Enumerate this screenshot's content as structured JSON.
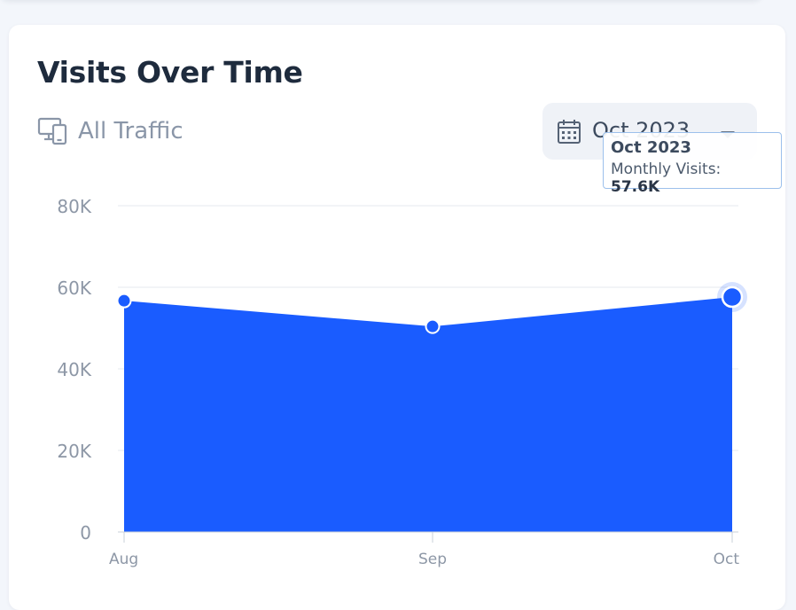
{
  "header": {
    "title": "Visits Over Time",
    "filter_label": "All Traffic",
    "date_selector": "Oct 2023"
  },
  "tooltip": {
    "title": "Oct 2023",
    "metric_label": "Monthly Visits:",
    "metric_value": "57.6K"
  },
  "icons": {
    "filter": "devices-icon",
    "date": "calendar-icon",
    "dropdown": "caret-down-icon"
  },
  "colors": {
    "area_fill": "#1a5cff",
    "point_fill": "#1a5cff",
    "grid": "#e6e9ef",
    "axis_text": "#8d97a6"
  },
  "chart_data": {
    "type": "area",
    "categories": [
      "Aug",
      "Sep",
      "Oct"
    ],
    "series": [
      {
        "values": [
          56700,
          50400,
          57600
        ]
      }
    ],
    "title": "Visits Over Time",
    "xlabel": "",
    "ylabel": "",
    "ylim": [
      0,
      80000
    ],
    "y_ticks": [
      0,
      20000,
      40000,
      60000,
      80000
    ],
    "y_tick_labels": [
      "0",
      "20K",
      "40K",
      "60K",
      "80K"
    ],
    "grid": true,
    "legend": "none",
    "highlighted_point": "Oct"
  }
}
